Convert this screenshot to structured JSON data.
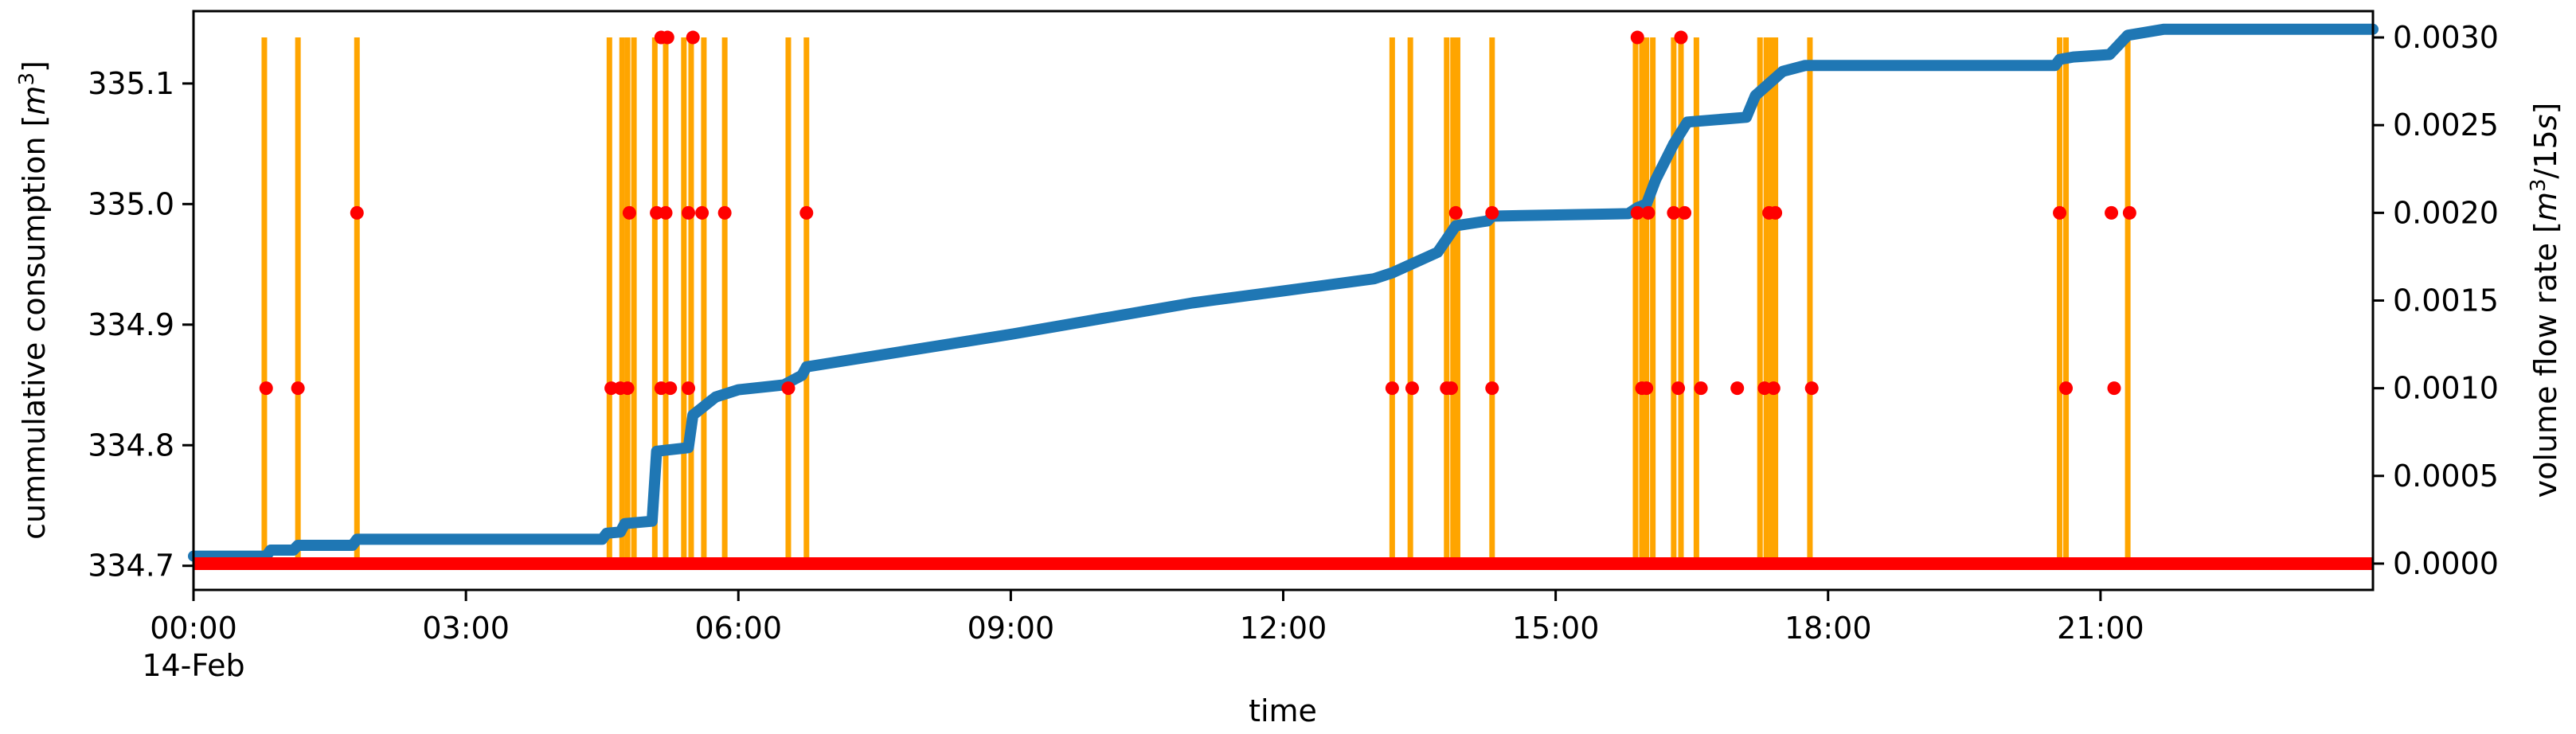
{
  "chart_data": {
    "type": "line",
    "title": "",
    "xlabel": "time",
    "ylabel_left": "cummulative consumption [m³]",
    "ylabel_right": "volume flow rate [m³/15s]",
    "xlim_hours": [
      0,
      24
    ],
    "x_ticks": [
      {
        "hour": 0,
        "label": "00:00",
        "sublabel": "14-Feb"
      },
      {
        "hour": 3,
        "label": "03:00",
        "sublabel": ""
      },
      {
        "hour": 6,
        "label": "06:00",
        "sublabel": ""
      },
      {
        "hour": 9,
        "label": "09:00",
        "sublabel": ""
      },
      {
        "hour": 12,
        "label": "12:00",
        "sublabel": ""
      },
      {
        "hour": 15,
        "label": "15:00",
        "sublabel": ""
      },
      {
        "hour": 18,
        "label": "18:00",
        "sublabel": ""
      },
      {
        "hour": 21,
        "label": "21:00",
        "sublabel": ""
      }
    ],
    "ylim_left": [
      334.68,
      335.16
    ],
    "y_ticks_left": [
      {
        "value": 334.7,
        "label": "334.7"
      },
      {
        "value": 334.8,
        "label": "334.8"
      },
      {
        "value": 334.9,
        "label": "334.9"
      },
      {
        "value": 335.0,
        "label": "335.0"
      },
      {
        "value": 335.1,
        "label": "335.1"
      }
    ],
    "ylim_right": [
      -0.00015,
      0.00315
    ],
    "y_ticks_right": [
      {
        "value": 0.0,
        "label": "0.0000"
      },
      {
        "value": 0.0005,
        "label": "0.0005"
      },
      {
        "value": 0.001,
        "label": "0.0010"
      },
      {
        "value": 0.0015,
        "label": "0.0015"
      },
      {
        "value": 0.002,
        "label": "0.0020"
      },
      {
        "value": 0.0025,
        "label": "0.0025"
      },
      {
        "value": 0.003,
        "label": "0.0030"
      }
    ],
    "grid": false,
    "colors": {
      "cumulative": "#1f77b4",
      "flow_lines": "#ffa500",
      "flow_points": "#ff0000"
    },
    "series": [
      {
        "axis": "left",
        "kind": "step-line",
        "points": [
          [
            0.0,
            334.708
          ],
          [
            0.8,
            334.708
          ],
          [
            0.85,
            334.713
          ],
          [
            1.1,
            334.713
          ],
          [
            1.15,
            334.717
          ],
          [
            1.75,
            334.717
          ],
          [
            1.8,
            334.722
          ],
          [
            4.5,
            334.722
          ],
          [
            4.55,
            334.727
          ],
          [
            4.7,
            334.728
          ],
          [
            4.75,
            334.735
          ],
          [
            5.05,
            334.737
          ],
          [
            5.1,
            334.795
          ],
          [
            5.45,
            334.798
          ],
          [
            5.5,
            334.825
          ],
          [
            5.75,
            334.84
          ],
          [
            6.0,
            334.846
          ],
          [
            6.5,
            334.85
          ],
          [
            6.7,
            334.858
          ],
          [
            6.75,
            334.865
          ],
          [
            8.0,
            334.88
          ],
          [
            9.0,
            334.892
          ],
          [
            10.0,
            334.905
          ],
          [
            11.0,
            334.918
          ],
          [
            12.0,
            334.928
          ],
          [
            13.0,
            334.938
          ],
          [
            13.2,
            334.943
          ],
          [
            13.7,
            334.96
          ],
          [
            13.9,
            334.982
          ],
          [
            14.25,
            334.986
          ],
          [
            14.3,
            334.99
          ],
          [
            15.8,
            334.992
          ],
          [
            15.9,
            334.997
          ],
          [
            16.0,
            335.0
          ],
          [
            16.1,
            335.02
          ],
          [
            16.3,
            335.05
          ],
          [
            16.45,
            335.068
          ],
          [
            17.1,
            335.072
          ],
          [
            17.2,
            335.09
          ],
          [
            17.5,
            335.11
          ],
          [
            17.75,
            335.115
          ],
          [
            20.5,
            335.115
          ],
          [
            20.55,
            335.12
          ],
          [
            20.7,
            335.122
          ],
          [
            21.1,
            335.124
          ],
          [
            21.3,
            335.14
          ],
          [
            21.7,
            335.145
          ],
          [
            24.0,
            335.145
          ]
        ]
      },
      {
        "axis": "right",
        "kind": "vertical-lines",
        "hours": [
          0.78,
          1.15,
          1.8,
          4.58,
          4.72,
          4.78,
          4.85,
          5.08,
          5.2,
          5.4,
          5.48,
          5.62,
          5.85,
          6.55,
          6.75,
          13.2,
          13.4,
          13.8,
          13.87,
          13.92,
          14.3,
          15.88,
          15.95,
          16.0,
          16.07,
          16.3,
          16.38,
          16.55,
          17.25,
          17.32,
          17.38,
          17.42,
          17.8,
          20.55,
          20.62,
          21.3
        ]
      },
      {
        "axis": "right",
        "kind": "scatter",
        "baseline": 0.0,
        "points": [
          [
            0.8,
            0.001
          ],
          [
            1.15,
            0.001
          ],
          [
            1.8,
            0.002
          ],
          [
            4.6,
            0.001
          ],
          [
            4.7,
            0.001
          ],
          [
            4.78,
            0.001
          ],
          [
            4.8,
            0.002
          ],
          [
            5.1,
            0.002
          ],
          [
            5.15,
            0.001
          ],
          [
            5.15,
            0.003
          ],
          [
            5.22,
            0.003
          ],
          [
            5.2,
            0.002
          ],
          [
            5.25,
            0.001
          ],
          [
            5.45,
            0.002
          ],
          [
            5.5,
            0.003
          ],
          [
            5.45,
            0.001
          ],
          [
            5.6,
            0.002
          ],
          [
            5.85,
            0.002
          ],
          [
            6.55,
            0.001
          ],
          [
            6.75,
            0.002
          ],
          [
            13.2,
            0.001
          ],
          [
            13.42,
            0.001
          ],
          [
            13.8,
            0.001
          ],
          [
            13.85,
            0.001
          ],
          [
            13.9,
            0.002
          ],
          [
            14.3,
            0.002
          ],
          [
            14.3,
            0.001
          ],
          [
            15.9,
            0.003
          ],
          [
            15.9,
            0.002
          ],
          [
            15.95,
            0.001
          ],
          [
            16.0,
            0.001
          ],
          [
            16.02,
            0.002
          ],
          [
            16.3,
            0.002
          ],
          [
            16.38,
            0.003
          ],
          [
            16.35,
            0.001
          ],
          [
            16.42,
            0.002
          ],
          [
            16.6,
            0.001
          ],
          [
            17.0,
            0.001
          ],
          [
            17.3,
            0.001
          ],
          [
            17.35,
            0.002
          ],
          [
            17.4,
            0.001
          ],
          [
            17.42,
            0.002
          ],
          [
            17.82,
            0.001
          ],
          [
            20.55,
            0.002
          ],
          [
            20.62,
            0.001
          ],
          [
            21.12,
            0.002
          ],
          [
            21.15,
            0.001
          ],
          [
            21.32,
            0.002
          ]
        ]
      }
    ]
  }
}
